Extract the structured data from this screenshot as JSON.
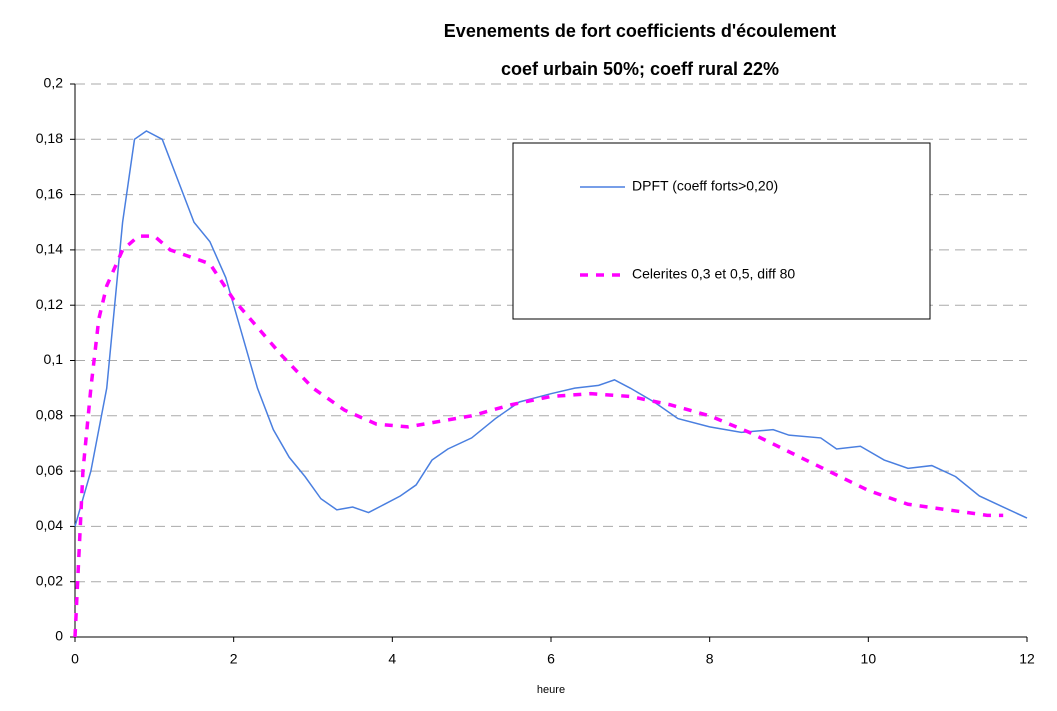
{
  "chart_data": {
    "type": "line",
    "title": "Evenements de fort coefficients d'écoulement",
    "subtitle": "coef urbain 50%; coeff rural 22%",
    "x_label": "heure",
    "xlim": [
      0,
      12
    ],
    "xticks": [
      0,
      2,
      4,
      6,
      8,
      10,
      12
    ],
    "ylim": [
      0,
      0.2
    ],
    "yticks": [
      0,
      {
        "value": 0.02,
        "label": "0,02"
      },
      {
        "value": 0.04,
        "label": "0,04"
      },
      {
        "value": 0.06,
        "label": "0,06"
      },
      {
        "value": 0.08,
        "label": "0,08"
      },
      {
        "value": 0.1,
        "label": "0,1"
      },
      {
        "value": 0.12,
        "label": "0,12"
      },
      {
        "value": 0.14,
        "label": "0,14"
      },
      {
        "value": 0.16,
        "label": "0,16"
      },
      {
        "value": 0.18,
        "label": "0,18"
      },
      {
        "value": 0.2,
        "label": "0,2"
      }
    ],
    "grid": true,
    "legend": "upper-right",
    "series": [
      {
        "name": "DPFT (coeff forts>0,20)",
        "color": "#4a7fe0",
        "dashed": false,
        "x": [
          0,
          0.2,
          0.4,
          0.6,
          0.75,
          0.9,
          1.1,
          1.3,
          1.5,
          1.7,
          1.9,
          2.1,
          2.3,
          2.5,
          2.7,
          2.9,
          3.1,
          3.3,
          3.5,
          3.7,
          3.9,
          4.1,
          4.3,
          4.5,
          4.7,
          5.0,
          5.3,
          5.6,
          6.0,
          6.3,
          6.6,
          6.8,
          7.0,
          7.3,
          7.6,
          8.0,
          8.4,
          8.8,
          9.0,
          9.4,
          9.6,
          9.9,
          10.2,
          10.5,
          10.8,
          11.1,
          11.4,
          11.7,
          12
        ],
        "values": [
          0.04,
          0.06,
          0.09,
          0.15,
          0.18,
          0.183,
          0.18,
          0.165,
          0.15,
          0.143,
          0.13,
          0.11,
          0.09,
          0.075,
          0.065,
          0.058,
          0.05,
          0.046,
          0.047,
          0.045,
          0.048,
          0.051,
          0.055,
          0.064,
          0.068,
          0.072,
          0.079,
          0.085,
          0.088,
          0.09,
          0.091,
          0.093,
          0.09,
          0.085,
          0.079,
          0.076,
          0.074,
          0.075,
          0.073,
          0.072,
          0.068,
          0.069,
          0.064,
          0.061,
          0.062,
          0.058,
          0.051,
          0.047,
          0.043
        ]
      },
      {
        "name": "Celerites 0,3 et 0,5, diff 80",
        "color": "#ff00ff",
        "dashed": true,
        "x": [
          0,
          0.05,
          0.1,
          0.2,
          0.3,
          0.4,
          0.6,
          0.8,
          1.0,
          1.2,
          1.5,
          1.7,
          2.0,
          2.3,
          2.6,
          3.0,
          3.4,
          3.8,
          4.2,
          4.6,
          5.0,
          5.5,
          6.0,
          6.5,
          7.0,
          7.5,
          8.0,
          8.5,
          9.0,
          9.5,
          10.0,
          10.5,
          11.0,
          11.5,
          11.7
        ],
        "values": [
          0,
          0.03,
          0.06,
          0.09,
          0.115,
          0.127,
          0.14,
          0.145,
          0.145,
          0.14,
          0.137,
          0.135,
          0.122,
          0.112,
          0.102,
          0.09,
          0.082,
          0.077,
          0.076,
          0.078,
          0.08,
          0.084,
          0.087,
          0.088,
          0.087,
          0.084,
          0.08,
          0.074,
          0.067,
          0.06,
          0.053,
          0.048,
          0.046,
          0.044,
          0.044
        ]
      }
    ]
  }
}
